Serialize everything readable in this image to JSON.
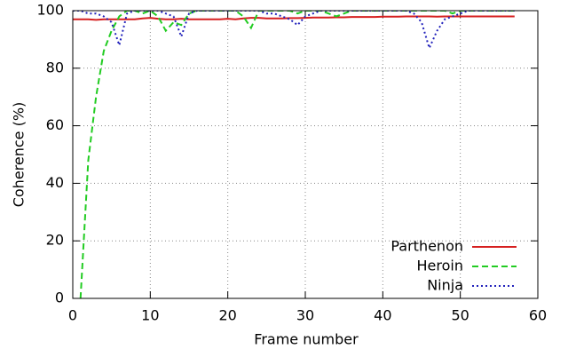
{
  "chart_data": {
    "type": "line",
    "x_label": "Frame number",
    "y_label": "Coherence (%)",
    "x": [
      0,
      1,
      2,
      3,
      4,
      5,
      6,
      7,
      8,
      9,
      10,
      11,
      12,
      13,
      14,
      15,
      16,
      17,
      18,
      19,
      20,
      21,
      22,
      23,
      24,
      25,
      26,
      27,
      28,
      29,
      30,
      31,
      32,
      33,
      34,
      35,
      36,
      37,
      38,
      39,
      40,
      41,
      42,
      43,
      44,
      45,
      46,
      47,
      48,
      49,
      50,
      51,
      52,
      53,
      54,
      55,
      56,
      57
    ],
    "series": [
      {
        "name": "Parthenon",
        "color": "#d62020",
        "dash": "solid",
        "values": [
          97,
          97,
          97,
          96.8,
          97,
          97,
          97,
          97,
          97,
          97.3,
          97.5,
          97.2,
          97,
          97,
          97.2,
          97,
          97,
          97,
          97,
          97,
          97.2,
          97,
          97.3,
          97.5,
          97.5,
          97.3,
          97.3,
          97.3,
          97.4,
          97.4,
          97.5,
          97.6,
          97.6,
          97.6,
          97.7,
          97.7,
          97.8,
          97.8,
          97.8,
          97.8,
          97.9,
          97.9,
          97.9,
          98,
          98,
          98,
          98,
          97.9,
          98,
          98,
          98,
          98,
          98,
          98,
          98,
          98,
          98,
          98
        ]
      },
      {
        "name": "Heroin",
        "color": "#22cc22",
        "dash": "dashed",
        "values": [
          null,
          0,
          48,
          70,
          86,
          93,
          98,
          100,
          100,
          99,
          100,
          98,
          93,
          96,
          95,
          99,
          100,
          100,
          100,
          100,
          100,
          100,
          98,
          94,
          100,
          100,
          100,
          100,
          100,
          99,
          100,
          100,
          100,
          99,
          98,
          99,
          100,
          100,
          100,
          100,
          100,
          100,
          100,
          100,
          100,
          100,
          100,
          100,
          100,
          99,
          100,
          100,
          100,
          100,
          100,
          100,
          100,
          100
        ]
      },
      {
        "name": "Ninja",
        "color": "#2222bb",
        "dash": "dotted",
        "values": [
          100,
          100,
          99,
          99,
          98,
          96,
          88,
          99,
          100,
          100,
          100,
          100,
          99,
          98,
          91,
          99,
          100,
          100,
          100,
          100,
          100,
          100,
          100,
          100,
          100,
          99,
          99,
          98,
          97,
          95,
          98,
          99,
          100,
          100,
          100,
          100,
          100,
          100,
          100,
          100,
          100,
          100,
          100,
          100,
          99,
          96,
          87,
          93,
          97,
          98,
          99,
          100,
          100,
          100,
          100,
          100,
          100,
          100
        ]
      }
    ],
    "xlim": [
      0,
      60
    ],
    "xticks": [
      0,
      10,
      20,
      30,
      40,
      50,
      60
    ],
    "ylim": [
      0,
      100
    ],
    "yticks": [
      0,
      20,
      40,
      60,
      80,
      100
    ],
    "grid": true,
    "legend": "bottom-right"
  }
}
